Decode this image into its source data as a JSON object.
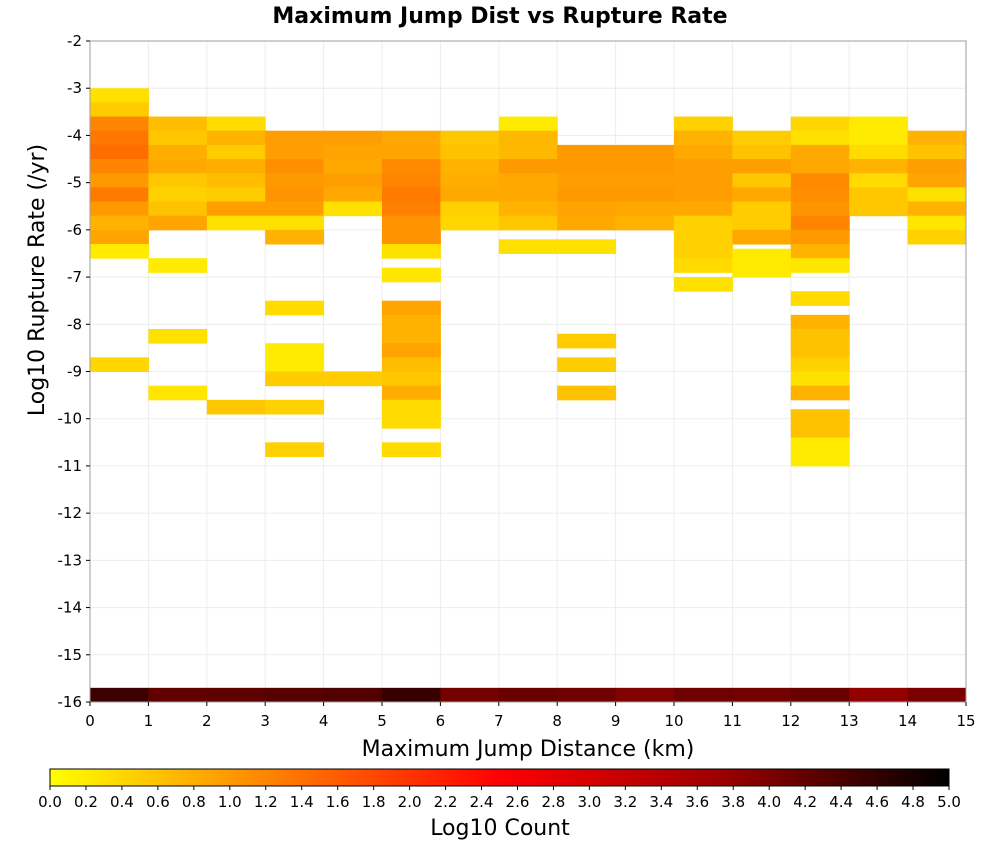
{
  "chart_data": {
    "type": "heatmap",
    "title": "Maximum Jump Dist vs Rupture Rate",
    "xlabel": "Maximum Jump Distance (km)",
    "ylabel": "Log10 Rupture Rate (/yr)",
    "xlim": [
      0,
      15
    ],
    "ylim": [
      -16,
      -2
    ],
    "x_ticks": [
      "0",
      "1",
      "2",
      "3",
      "4",
      "5",
      "6",
      "7",
      "8",
      "9",
      "10",
      "11",
      "12",
      "13",
      "14",
      "15"
    ],
    "y_ticks": [
      "-2",
      "-3",
      "-4",
      "-5",
      "-6",
      "-7",
      "-8",
      "-9",
      "-10",
      "-11",
      "-12",
      "-13",
      "-14",
      "-15",
      "-16"
    ],
    "grid": true,
    "x_bin_width": 1,
    "y_bin_height": 0.3,
    "colorbar": {
      "label": "Log10 Count",
      "range": [
        0,
        5
      ],
      "ticks": [
        "0.0",
        "0.2",
        "0.4",
        "0.6",
        "0.8",
        "1.0",
        "1.2",
        "1.4",
        "1.6",
        "1.8",
        "2.0",
        "2.2",
        "2.4",
        "2.6",
        "2.8",
        "3.0",
        "3.2",
        "3.4",
        "3.6",
        "3.8",
        "4.0",
        "4.2",
        "4.4",
        "4.6",
        "4.8",
        "5.0"
      ],
      "colors": [
        "#ffff00",
        "#ff8000",
        "#ff0000",
        "#990000",
        "#000000"
      ]
    },
    "cells": [
      [
        0,
        -3.15,
        0.3
      ],
      [
        0,
        -3.45,
        0.5
      ],
      [
        0,
        -3.75,
        1.2
      ],
      [
        0,
        -4.05,
        1.35
      ],
      [
        0,
        -4.35,
        1.45
      ],
      [
        0,
        -4.65,
        1.2
      ],
      [
        0,
        -4.95,
        1.0
      ],
      [
        0,
        -5.25,
        1.3
      ],
      [
        0,
        -5.55,
        1.0
      ],
      [
        0,
        -5.85,
        0.75
      ],
      [
        0,
        -6.15,
        0.9
      ],
      [
        0,
        -6.45,
        0.2
      ],
      [
        0,
        -8.85,
        0.4
      ],
      [
        1,
        -3.75,
        0.65
      ],
      [
        1,
        -4.05,
        0.55
      ],
      [
        1,
        -4.35,
        0.8
      ],
      [
        1,
        -4.65,
        0.85
      ],
      [
        1,
        -4.95,
        0.55
      ],
      [
        1,
        -5.25,
        0.45
      ],
      [
        1,
        -5.55,
        0.6
      ],
      [
        1,
        -5.85,
        0.9
      ],
      [
        1,
        -6.75,
        0.2
      ],
      [
        1,
        -8.25,
        0.3
      ],
      [
        1,
        -9.45,
        0.25
      ],
      [
        2,
        -3.75,
        0.35
      ],
      [
        2,
        -4.05,
        0.75
      ],
      [
        2,
        -4.35,
        0.5
      ],
      [
        2,
        -4.65,
        0.8
      ],
      [
        2,
        -4.95,
        0.65
      ],
      [
        2,
        -5.25,
        0.5
      ],
      [
        2,
        -5.55,
        0.95
      ],
      [
        2,
        -5.85,
        0.3
      ],
      [
        2,
        -9.75,
        0.55
      ],
      [
        3,
        -4.05,
        0.95
      ],
      [
        3,
        -4.35,
        0.95
      ],
      [
        3,
        -4.65,
        1.1
      ],
      [
        3,
        -4.95,
        1.0
      ],
      [
        3,
        -5.25,
        1.05
      ],
      [
        3,
        -5.55,
        0.95
      ],
      [
        3,
        -5.85,
        0.3
      ],
      [
        3,
        -6.15,
        0.75
      ],
      [
        3,
        -7.65,
        0.35
      ],
      [
        3,
        -8.55,
        0.2
      ],
      [
        3,
        -8.85,
        0.2
      ],
      [
        3,
        -9.15,
        0.5
      ],
      [
        3,
        -9.75,
        0.45
      ],
      [
        3,
        -10.65,
        0.45
      ],
      [
        4,
        -4.05,
        0.95
      ],
      [
        4,
        -4.35,
        0.9
      ],
      [
        4,
        -4.65,
        0.85
      ],
      [
        4,
        -4.95,
        0.95
      ],
      [
        4,
        -5.25,
        0.85
      ],
      [
        4,
        -5.55,
        0.3
      ],
      [
        4,
        -9.15,
        0.5
      ],
      [
        5,
        -4.05,
        0.85
      ],
      [
        5,
        -4.35,
        0.9
      ],
      [
        5,
        -4.65,
        1.15
      ],
      [
        5,
        -4.95,
        1.2
      ],
      [
        5,
        -5.25,
        1.3
      ],
      [
        5,
        -5.55,
        1.25
      ],
      [
        5,
        -5.85,
        1.05
      ],
      [
        5,
        -6.15,
        1.05
      ],
      [
        5,
        -6.45,
        0.3
      ],
      [
        5,
        -6.95,
        0.25
      ],
      [
        5,
        -7.65,
        0.9
      ],
      [
        5,
        -7.95,
        0.75
      ],
      [
        5,
        -8.25,
        0.75
      ],
      [
        5,
        -8.55,
        0.9
      ],
      [
        5,
        -8.85,
        0.65
      ],
      [
        5,
        -9.15,
        0.55
      ],
      [
        5,
        -9.45,
        0.8
      ],
      [
        5,
        -9.75,
        0.35
      ],
      [
        5,
        -10.05,
        0.35
      ],
      [
        5,
        -10.65,
        0.35
      ],
      [
        6,
        -4.05,
        0.55
      ],
      [
        6,
        -4.35,
        0.6
      ],
      [
        6,
        -4.65,
        0.75
      ],
      [
        6,
        -4.95,
        0.8
      ],
      [
        6,
        -5.25,
        0.85
      ],
      [
        6,
        -5.55,
        0.45
      ],
      [
        6,
        -5.85,
        0.4
      ],
      [
        7,
        -3.75,
        0.2
      ],
      [
        7,
        -4.05,
        0.7
      ],
      [
        7,
        -4.35,
        0.7
      ],
      [
        7,
        -4.65,
        1.0
      ],
      [
        7,
        -4.95,
        0.85
      ],
      [
        7,
        -5.25,
        0.85
      ],
      [
        7,
        -5.55,
        0.75
      ],
      [
        7,
        -5.85,
        0.55
      ],
      [
        7,
        -6.35,
        0.3
      ],
      [
        8,
        -4.35,
        1.0
      ],
      [
        8,
        -4.65,
        1.0
      ],
      [
        8,
        -4.95,
        0.95
      ],
      [
        8,
        -5.25,
        1.0
      ],
      [
        8,
        -5.55,
        0.9
      ],
      [
        8,
        -5.85,
        0.85
      ],
      [
        8,
        -6.35,
        0.3
      ],
      [
        8,
        -8.35,
        0.5
      ],
      [
        8,
        -8.85,
        0.5
      ],
      [
        8,
        -9.45,
        0.6
      ],
      [
        9,
        -4.35,
        1.0
      ],
      [
        9,
        -4.65,
        1.0
      ],
      [
        9,
        -4.95,
        0.95
      ],
      [
        9,
        -5.25,
        1.0
      ],
      [
        9,
        -5.55,
        0.85
      ],
      [
        9,
        -5.85,
        0.75
      ],
      [
        10,
        -3.75,
        0.45
      ],
      [
        10,
        -4.05,
        0.75
      ],
      [
        10,
        -4.35,
        0.85
      ],
      [
        10,
        -4.65,
        0.95
      ],
      [
        10,
        -4.95,
        0.95
      ],
      [
        10,
        -5.25,
        0.95
      ],
      [
        10,
        -5.55,
        0.85
      ],
      [
        10,
        -5.85,
        0.45
      ],
      [
        10,
        -6.15,
        0.45
      ],
      [
        10,
        -6.45,
        0.45
      ],
      [
        10,
        -6.75,
        0.35
      ],
      [
        10,
        -7.15,
        0.3
      ],
      [
        11,
        -4.05,
        0.5
      ],
      [
        11,
        -4.35,
        0.6
      ],
      [
        11,
        -4.65,
        0.95
      ],
      [
        11,
        -4.95,
        0.55
      ],
      [
        11,
        -5.25,
        0.85
      ],
      [
        11,
        -5.55,
        0.5
      ],
      [
        11,
        -5.85,
        0.5
      ],
      [
        11,
        -6.15,
        0.85
      ],
      [
        11,
        -6.55,
        0.2
      ],
      [
        11,
        -6.85,
        0.2
      ],
      [
        12,
        -3.75,
        0.4
      ],
      [
        12,
        -4.05,
        0.3
      ],
      [
        12,
        -4.35,
        0.85
      ],
      [
        12,
        -4.65,
        0.85
      ],
      [
        12,
        -4.95,
        1.15
      ],
      [
        12,
        -5.25,
        1.1
      ],
      [
        12,
        -5.55,
        1.05
      ],
      [
        12,
        -5.85,
        1.2
      ],
      [
        12,
        -6.15,
        1.0
      ],
      [
        12,
        -6.45,
        0.75
      ],
      [
        12,
        -6.75,
        0.25
      ],
      [
        12,
        -7.45,
        0.35
      ],
      [
        12,
        -7.95,
        0.75
      ],
      [
        12,
        -8.25,
        0.6
      ],
      [
        12,
        -8.55,
        0.6
      ],
      [
        12,
        -8.85,
        0.45
      ],
      [
        12,
        -9.15,
        0.3
      ],
      [
        12,
        -9.45,
        0.75
      ],
      [
        12,
        -9.95,
        0.6
      ],
      [
        12,
        -10.25,
        0.6
      ],
      [
        12,
        -10.55,
        0.2
      ],
      [
        12,
        -10.85,
        0.2
      ],
      [
        13,
        -3.75,
        0.2
      ],
      [
        13,
        -4.05,
        0.2
      ],
      [
        13,
        -4.35,
        0.35
      ],
      [
        13,
        -4.65,
        0.75
      ],
      [
        13,
        -4.95,
        0.35
      ],
      [
        13,
        -5.25,
        0.55
      ],
      [
        13,
        -5.55,
        0.55
      ],
      [
        14,
        -4.05,
        0.75
      ],
      [
        14,
        -4.35,
        0.6
      ],
      [
        14,
        -4.65,
        0.95
      ],
      [
        14,
        -4.95,
        0.9
      ],
      [
        14,
        -5.25,
        0.3
      ],
      [
        14,
        -5.55,
        0.75
      ],
      [
        14,
        -5.85,
        0.25
      ],
      [
        14,
        -6.15,
        0.45
      ],
      [
        0,
        -15.85,
        4.5
      ],
      [
        1,
        -15.85,
        4.2
      ],
      [
        2,
        -15.85,
        4.25
      ],
      [
        3,
        -15.85,
        4.3
      ],
      [
        4,
        -15.85,
        4.35
      ],
      [
        5,
        -15.85,
        4.55
      ],
      [
        6,
        -15.85,
        4.05
      ],
      [
        7,
        -15.85,
        4.15
      ],
      [
        8,
        -15.85,
        4.1
      ],
      [
        9,
        -15.85,
        3.95
      ],
      [
        10,
        -15.85,
        4.1
      ],
      [
        11,
        -15.85,
        4.05
      ],
      [
        12,
        -15.85,
        4.15
      ],
      [
        13,
        -15.85,
        3.8
      ],
      [
        14,
        -15.85,
        4.0
      ]
    ]
  }
}
